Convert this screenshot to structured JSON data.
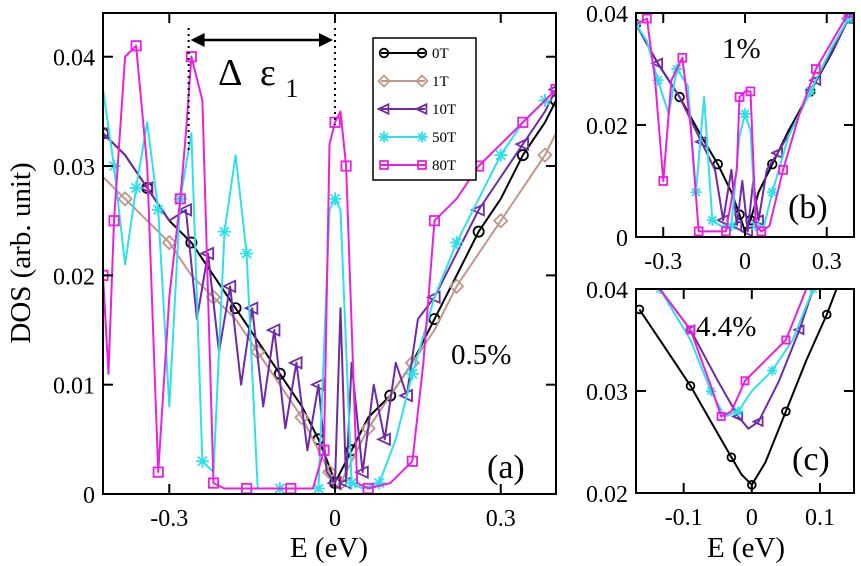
{
  "chart_data": [
    {
      "panel": "a",
      "type": "line",
      "panel_label": "(a)",
      "annotation": "0.5%",
      "gap_label": {
        "delta": "Δ",
        "eps": "ε",
        "sub": "1"
      },
      "xlabel": "E (eV)",
      "ylabel": "DOS (arb. unit)",
      "xlim": [
        -0.42,
        0.4
      ],
      "ylim": [
        0,
        0.044
      ],
      "xticks": [
        -0.3,
        0,
        0.3
      ],
      "xtick_labels": [
        "-0.3",
        "0",
        "0.3"
      ],
      "yticks": [
        0,
        0.01,
        0.02,
        0.03,
        0.04
      ],
      "ytick_labels": [
        "0",
        "0.01",
        "0.02",
        "0.03",
        "0.04"
      ],
      "gap_marker_x": [
        -0.265,
        0
      ],
      "legend": {
        "position": "top-center",
        "entries": [
          "0T",
          "1T",
          "10T",
          "50T",
          "80T"
        ]
      },
      "series": [
        {
          "name": "0T",
          "color": "#000000",
          "marker": "circle",
          "x": [
            -0.42,
            -0.38,
            -0.34,
            -0.3,
            -0.26,
            -0.22,
            -0.18,
            -0.14,
            -0.1,
            -0.06,
            -0.03,
            -0.01,
            0.0,
            0.01,
            0.03,
            0.06,
            0.1,
            0.14,
            0.18,
            0.22,
            0.26,
            0.3,
            0.34,
            0.38,
            0.4
          ],
          "y": [
            0.033,
            0.031,
            0.028,
            0.025,
            0.023,
            0.02,
            0.017,
            0.014,
            0.011,
            0.008,
            0.005,
            0.0025,
            0.001,
            0.002,
            0.004,
            0.007,
            0.009,
            0.012,
            0.016,
            0.02,
            0.024,
            0.027,
            0.031,
            0.034,
            0.036
          ]
        },
        {
          "name": "1T",
          "color": "#c09787",
          "marker": "diamond",
          "x": [
            -0.42,
            -0.38,
            -0.34,
            -0.3,
            -0.26,
            -0.22,
            -0.18,
            -0.14,
            -0.1,
            -0.06,
            -0.03,
            -0.01,
            0.0,
            0.01,
            0.03,
            0.06,
            0.1,
            0.14,
            0.18,
            0.22,
            0.26,
            0.3,
            0.34,
            0.38,
            0.4
          ],
          "y": [
            0.029,
            0.027,
            0.025,
            0.023,
            0.02,
            0.018,
            0.016,
            0.013,
            0.01,
            0.007,
            0.004,
            0.002,
            0.0005,
            0.001,
            0.003,
            0.006,
            0.009,
            0.012,
            0.015,
            0.019,
            0.022,
            0.025,
            0.028,
            0.031,
            0.033
          ]
        },
        {
          "name": "10T",
          "color": "#6f2aa6",
          "marker": "triangle-left",
          "x": [
            -0.42,
            -0.38,
            -0.34,
            -0.3,
            -0.27,
            -0.25,
            -0.23,
            -0.21,
            -0.19,
            -0.17,
            -0.15,
            -0.13,
            -0.11,
            -0.09,
            -0.07,
            -0.05,
            -0.03,
            -0.015,
            0.0,
            0.01,
            0.02,
            0.03,
            0.05,
            0.07,
            0.09,
            0.11,
            0.13,
            0.15,
            0.18,
            0.22,
            0.26,
            0.3,
            0.34,
            0.38,
            0.4
          ],
          "y": [
            0.033,
            0.031,
            0.028,
            0.025,
            0.026,
            0.016,
            0.022,
            0.013,
            0.019,
            0.01,
            0.017,
            0.008,
            0.015,
            0.006,
            0.012,
            0.004,
            0.01,
            0.002,
            0.001,
            0.017,
            0.001,
            0.012,
            0.002,
            0.01,
            0.005,
            0.012,
            0.009,
            0.016,
            0.018,
            0.022,
            0.026,
            0.029,
            0.032,
            0.035,
            0.037
          ]
        },
        {
          "name": "50T",
          "color": "#2fe0e8",
          "marker": "asterisk",
          "x": [
            -0.42,
            -0.4,
            -0.38,
            -0.36,
            -0.34,
            -0.32,
            -0.3,
            -0.28,
            -0.26,
            -0.24,
            -0.22,
            -0.2,
            -0.18,
            -0.16,
            -0.14,
            -0.1,
            -0.06,
            -0.03,
            -0.01,
            0.0,
            0.01,
            0.03,
            0.05,
            0.08,
            0.11,
            0.14,
            0.18,
            0.22,
            0.26,
            0.3,
            0.34,
            0.38,
            0.4
          ],
          "y": [
            0.037,
            0.03,
            0.021,
            0.028,
            0.034,
            0.026,
            0.008,
            0.027,
            0.033,
            0.003,
            0.002,
            0.024,
            0.031,
            0.022,
            0.0005,
            0.0005,
            0.0005,
            0.0005,
            0.026,
            0.027,
            0.026,
            0.001,
            0.0005,
            0.001,
            0.005,
            0.011,
            0.018,
            0.023,
            0.027,
            0.031,
            0.034,
            0.036,
            0.037
          ]
        },
        {
          "name": "80T",
          "color": "#e820e0",
          "marker": "square",
          "x": [
            -0.42,
            -0.41,
            -0.4,
            -0.38,
            -0.36,
            -0.34,
            -0.32,
            -0.3,
            -0.28,
            -0.27,
            -0.26,
            -0.24,
            -0.22,
            -0.2,
            -0.16,
            -0.12,
            -0.08,
            -0.04,
            -0.02,
            -0.01,
            0.0,
            0.01,
            0.02,
            0.04,
            0.06,
            0.1,
            0.14,
            0.16,
            0.18,
            0.22,
            0.26,
            0.3,
            0.34,
            0.38,
            0.4
          ],
          "y": [
            0.02,
            0.011,
            0.025,
            0.04,
            0.041,
            0.03,
            0.002,
            0.018,
            0.027,
            0.033,
            0.04,
            0.036,
            0.001,
            0.0005,
            0.0005,
            0.0005,
            0.0005,
            0.0005,
            0.004,
            0.032,
            0.034,
            0.035,
            0.03,
            0.001,
            0.0005,
            0.001,
            0.003,
            0.012,
            0.025,
            0.027,
            0.03,
            0.032,
            0.034,
            0.036,
            0.037
          ]
        }
      ]
    },
    {
      "panel": "b",
      "type": "line",
      "panel_label": "(b)",
      "annotation": "1%",
      "xlim": [
        -0.4,
        0.4
      ],
      "ylim": [
        0,
        0.04
      ],
      "xticks": [
        -0.3,
        0,
        0.3
      ],
      "xtick_labels": [
        "-0.3",
        "0",
        "0.3"
      ],
      "yticks": [
        0,
        0.02,
        0.04
      ],
      "ytick_labels": [
        "0",
        "0.02",
        "0.04"
      ],
      "series": [
        {
          "name": "0T",
          "color": "#000000",
          "marker": "circle",
          "x": [
            -0.4,
            -0.32,
            -0.24,
            -0.16,
            -0.1,
            -0.05,
            -0.02,
            0.0,
            0.02,
            0.05,
            0.1,
            0.16,
            0.24,
            0.32,
            0.38
          ],
          "y": [
            0.038,
            0.031,
            0.025,
            0.018,
            0.013,
            0.008,
            0.004,
            0.001,
            0.003,
            0.008,
            0.013,
            0.019,
            0.026,
            0.033,
            0.039
          ]
        },
        {
          "name": "10T",
          "color": "#6f2aa6",
          "marker": "triangle-left",
          "x": [
            -0.4,
            -0.32,
            -0.24,
            -0.16,
            -0.11,
            -0.08,
            -0.05,
            -0.03,
            -0.01,
            0.01,
            0.03,
            0.05,
            0.08,
            0.12,
            0.18,
            0.26,
            0.34,
            0.38
          ],
          "y": [
            0.038,
            0.031,
            0.025,
            0.017,
            0.012,
            0.003,
            0.012,
            0.002,
            0.01,
            0.001,
            0.01,
            0.003,
            0.012,
            0.015,
            0.02,
            0.028,
            0.035,
            0.039
          ]
        },
        {
          "name": "50T",
          "color": "#2fe0e8",
          "marker": "asterisk",
          "x": [
            -0.4,
            -0.36,
            -0.32,
            -0.28,
            -0.25,
            -0.21,
            -0.18,
            -0.15,
            -0.12,
            -0.09,
            -0.05,
            -0.02,
            0.0,
            0.02,
            0.04,
            0.07,
            0.1,
            0.16,
            0.24,
            0.32,
            0.38
          ],
          "y": [
            0.038,
            0.035,
            0.028,
            0.022,
            0.03,
            0.027,
            0.008,
            0.025,
            0.003,
            0.002,
            0.002,
            0.018,
            0.022,
            0.019,
            0.002,
            0.002,
            0.008,
            0.018,
            0.026,
            0.034,
            0.039
          ]
        },
        {
          "name": "80T",
          "color": "#e820e0",
          "marker": "square",
          "x": [
            -0.4,
            -0.36,
            -0.33,
            -0.3,
            -0.27,
            -0.23,
            -0.2,
            -0.17,
            -0.12,
            -0.07,
            -0.03,
            -0.02,
            0.0,
            0.02,
            0.04,
            0.06,
            0.09,
            0.14,
            0.2,
            0.26,
            0.32,
            0.38
          ],
          "y": [
            0.038,
            0.039,
            0.028,
            0.01,
            0.028,
            0.032,
            0.02,
            0.001,
            0.001,
            0.001,
            0.012,
            0.025,
            0.026,
            0.026,
            0.002,
            0.001,
            0.002,
            0.012,
            0.022,
            0.03,
            0.035,
            0.04
          ]
        }
      ]
    },
    {
      "panel": "c",
      "type": "line",
      "panel_label": "(c)",
      "annotation": "4.4%",
      "xlabel": "E (eV)",
      "xlim": [
        -0.17,
        0.15
      ],
      "ylim": [
        0.02,
        0.04
      ],
      "xticks": [
        -0.1,
        0,
        0.1
      ],
      "xtick_labels": [
        "-0.1",
        "0",
        "0.1"
      ],
      "yticks": [
        0.02,
        0.03,
        0.04
      ],
      "ytick_labels": [
        "0.02",
        "0.03",
        "0.04"
      ],
      "series": [
        {
          "name": "0T",
          "color": "#000000",
          "marker": "circle",
          "x": [
            -0.165,
            -0.13,
            -0.09,
            -0.06,
            -0.03,
            -0.015,
            0.0,
            0.02,
            0.05,
            0.08,
            0.11,
            0.13
          ],
          "y": [
            0.038,
            0.0345,
            0.0305,
            0.027,
            0.0235,
            0.0218,
            0.0208,
            0.023,
            0.028,
            0.033,
            0.0375,
            0.041
          ]
        },
        {
          "name": "10T",
          "color": "#6f2aa6",
          "marker": "triangle-left",
          "x": [
            -0.135,
            -0.09,
            -0.05,
            -0.02,
            -0.005,
            0.01,
            0.04,
            0.07,
            0.09
          ],
          "y": [
            0.04,
            0.036,
            0.031,
            0.0275,
            0.0263,
            0.027,
            0.031,
            0.036,
            0.04
          ]
        },
        {
          "name": "50T",
          "color": "#2fe0e8",
          "marker": "asterisk",
          "x": [
            -0.135,
            -0.09,
            -0.06,
            -0.04,
            -0.02,
            0.0,
            0.03,
            0.06,
            0.09
          ],
          "y": [
            0.04,
            0.035,
            0.03,
            0.0275,
            0.028,
            0.03,
            0.032,
            0.035,
            0.04
          ]
        },
        {
          "name": "80T",
          "color": "#e820e0",
          "marker": "square",
          "x": [
            -0.135,
            -0.09,
            -0.06,
            -0.045,
            -0.03,
            -0.01,
            0.02,
            0.05,
            0.08
          ],
          "y": [
            0.04,
            0.036,
            0.0305,
            0.0275,
            0.028,
            0.031,
            0.033,
            0.035,
            0.04
          ]
        }
      ]
    }
  ]
}
